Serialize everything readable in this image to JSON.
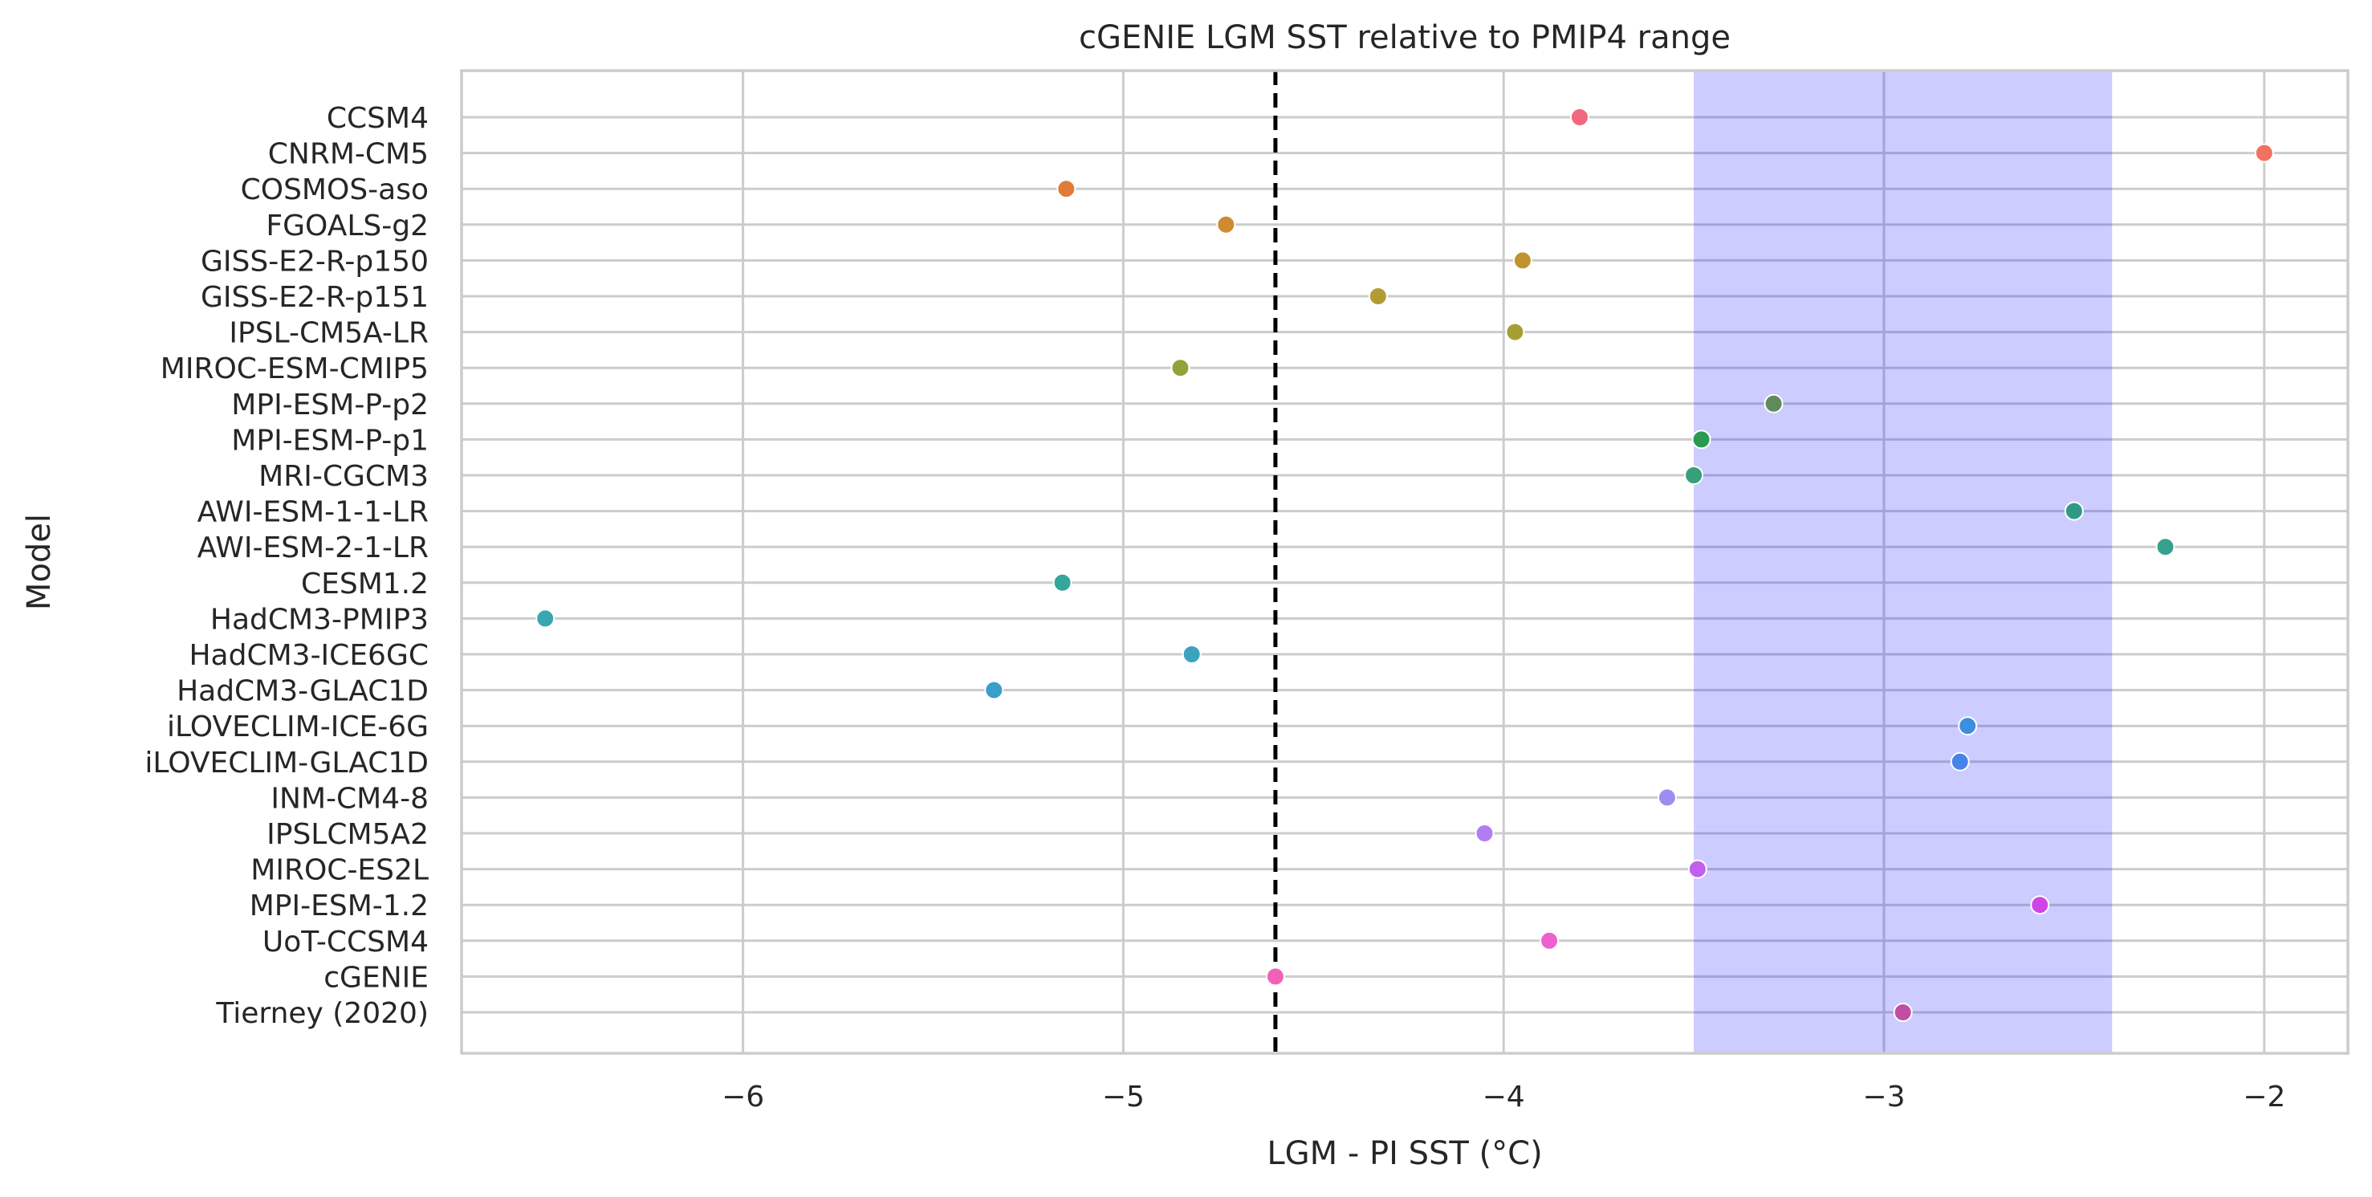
{
  "chart_data": {
    "type": "scatter",
    "title": "cGENIE LGM SST relative to PMIP4 range",
    "xlabel": "LGM - PI SST (°C)",
    "ylabel": "Model",
    "xlim": [
      -6.74,
      -1.78
    ],
    "xticks": [
      -6,
      -5,
      -4,
      -3,
      -2
    ],
    "xtick_labels": [
      "−6",
      "−5",
      "−4",
      "−3",
      "−2"
    ],
    "grid": true,
    "reference_line": {
      "x": -4.6,
      "style": "dashed",
      "color": "#000000"
    },
    "shaded_range": {
      "x": [
        -3.5,
        -2.4
      ],
      "color": "#0000ff",
      "opacity": 0.2
    },
    "points": [
      {
        "model": "CCSM4",
        "x": -3.8,
        "color": "#f0677e"
      },
      {
        "model": "CNRM-CM5",
        "x": -2.0,
        "color": "#f0735f"
      },
      {
        "model": "COSMOS-aso",
        "x": -5.15,
        "color": "#e07b39"
      },
      {
        "model": "FGOALS-g2",
        "x": -4.73,
        "color": "#d08a2f"
      },
      {
        "model": "GISS-E2-R-p150",
        "x": -3.95,
        "color": "#c19230"
      },
      {
        "model": "GISS-E2-R-p151",
        "x": -4.33,
        "color": "#b39b33"
      },
      {
        "model": "IPSL-CM5A-LR",
        "x": -3.97,
        "color": "#a59f33"
      },
      {
        "model": "MIROC-ESM-CMIP5",
        "x": -4.85,
        "color": "#8ea43a"
      },
      {
        "model": "MPI-ESM-P-p2",
        "x": -3.29,
        "color": "#5f8b5a"
      },
      {
        "model": "MPI-ESM-P-p1",
        "x": -3.48,
        "color": "#2a9a52"
      },
      {
        "model": "MRI-CGCM3",
        "x": -3.5,
        "color": "#37a07a"
      },
      {
        "model": "AWI-ESM-1-1-LR",
        "x": -2.5,
        "color": "#2f9a84"
      },
      {
        "model": "AWI-ESM-2-1-LR",
        "x": -2.26,
        "color": "#36a18e"
      },
      {
        "model": "CESM1.2",
        "x": -5.16,
        "color": "#36a59c"
      },
      {
        "model": "HadCM3-PMIP3",
        "x": -6.52,
        "color": "#38a7b2"
      },
      {
        "model": "HadCM3-ICE6GC",
        "x": -4.82,
        "color": "#3aa4bd"
      },
      {
        "model": "HadCM3-GLAC1D",
        "x": -5.34,
        "color": "#3b9ecb"
      },
      {
        "model": "iLOVECLIM-ICE-6G",
        "x": -2.78,
        "color": "#3d8ee0"
      },
      {
        "model": "iLOVECLIM-GLAC1D",
        "x": -2.8,
        "color": "#4784ea"
      },
      {
        "model": "INM-CM4-8",
        "x": -3.57,
        "color": "#9b8ef0"
      },
      {
        "model": "IPSLCM5A2",
        "x": -4.05,
        "color": "#b07ef2"
      },
      {
        "model": "MIROC-ES2L",
        "x": -3.49,
        "color": "#c160ef"
      },
      {
        "model": "MPI-ESM-1.2",
        "x": -2.59,
        "color": "#cf45e8"
      },
      {
        "model": "UoT-CCSM4",
        "x": -3.88,
        "color": "#ee5fd0"
      },
      {
        "model": "cGENIE",
        "x": -4.6,
        "color": "#f062b8"
      },
      {
        "model": "Tierney (2020)",
        "x": -2.95,
        "color": "#c04ea3"
      }
    ]
  }
}
